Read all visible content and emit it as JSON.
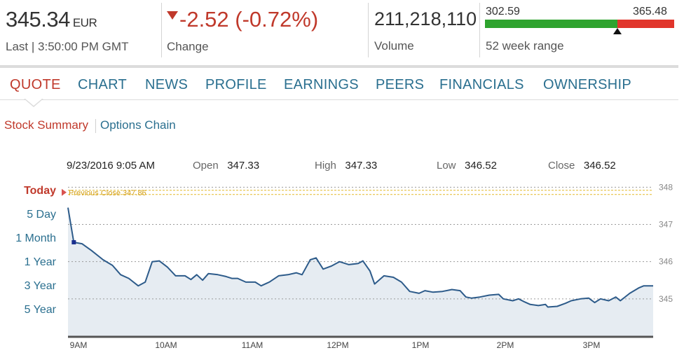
{
  "quote": {
    "price": "345.34",
    "currency": "EUR",
    "last_label": "Last",
    "time": "3:50:00 PM GMT",
    "change": "-2.52 (-0.72%)",
    "change_label": "Change",
    "change_direction_icon": "down-triangle-icon",
    "volume": "211,218,110",
    "volume_label": "Volume",
    "week52_low": "302.59",
    "week52_high": "365.48",
    "week52_label": "52 week range",
    "week52_position_fraction": 0.7,
    "colors": {
      "up": "#2ea32e",
      "down": "#e1352b",
      "accent": "#c0392b",
      "link": "#2a6f8f"
    }
  },
  "nav": {
    "tabs": [
      "QUOTE",
      "CHART",
      "NEWS",
      "PROFILE",
      "EARNINGS",
      "PEERS",
      "FINANCIALS",
      "OWNERSHIP"
    ],
    "active_tab": "QUOTE"
  },
  "subnav": {
    "items": [
      "Stock Summary",
      "Options Chain"
    ],
    "active": "Stock Summary"
  },
  "bar_info": {
    "datetime": "9/23/2016 9:05 AM",
    "open_label": "Open",
    "open": "347.33",
    "high_label": "High",
    "high": "347.33",
    "low_label": "Low",
    "low": "346.52",
    "close_label": "Close",
    "close": "346.52"
  },
  "ranges": {
    "items": [
      "Today",
      "5 Day",
      "1 Month",
      "1 Year",
      "3 Year",
      "5 Year"
    ],
    "active": "Today"
  },
  "chart_data": {
    "type": "area",
    "title": "",
    "xlabel": "",
    "ylabel": "",
    "x_tick_labels": [
      "9AM",
      "10AM",
      "11AM",
      "12PM",
      "1PM",
      "2PM",
      "3PM"
    ],
    "y_tick_labels": [
      "345",
      "346",
      "347",
      "348"
    ],
    "ylim": [
      344,
      348.1
    ],
    "previous_close": 347.86,
    "previous_close_label": "Previous Close 347.86",
    "grid": true,
    "series": [
      {
        "values": [
          {
            "t": "9:00",
            "v": 347.45
          },
          {
            "t": "9:05",
            "v": 346.52
          },
          {
            "t": "9:12",
            "v": 346.48
          },
          {
            "t": "9:20",
            "v": 346.3
          },
          {
            "t": "9:30",
            "v": 346.05
          },
          {
            "t": "9:38",
            "v": 345.9
          },
          {
            "t": "9:45",
            "v": 345.65
          },
          {
            "t": "9:52",
            "v": 345.55
          },
          {
            "t": "10:00",
            "v": 345.35
          },
          {
            "t": "10:06",
            "v": 345.45
          },
          {
            "t": "10:12",
            "v": 346.0
          },
          {
            "t": "10:18",
            "v": 346.02
          },
          {
            "t": "10:25",
            "v": 345.85
          },
          {
            "t": "10:32",
            "v": 345.62
          },
          {
            "t": "10:40",
            "v": 345.62
          },
          {
            "t": "10:45",
            "v": 345.52
          },
          {
            "t": "10:50",
            "v": 345.65
          },
          {
            "t": "10:55",
            "v": 345.5
          },
          {
            "t": "11:00",
            "v": 345.68
          },
          {
            "t": "11:08",
            "v": 345.65
          },
          {
            "t": "11:15",
            "v": 345.6
          },
          {
            "t": "11:20",
            "v": 345.55
          },
          {
            "t": "11:25",
            "v": 345.55
          },
          {
            "t": "11:32",
            "v": 345.45
          },
          {
            "t": "11:40",
            "v": 345.45
          },
          {
            "t": "11:45",
            "v": 345.35
          },
          {
            "t": "11:52",
            "v": 345.45
          },
          {
            "t": "12:00",
            "v": 345.62
          },
          {
            "t": "12:08",
            "v": 345.65
          },
          {
            "t": "12:15",
            "v": 345.7
          },
          {
            "t": "12:20",
            "v": 345.65
          },
          {
            "t": "12:27",
            "v": 346.05
          },
          {
            "t": "12:32",
            "v": 346.1
          },
          {
            "t": "12:38",
            "v": 345.8
          },
          {
            "t": "12:45",
            "v": 345.88
          },
          {
            "t": "12:52",
            "v": 346.0
          },
          {
            "t": "13:00",
            "v": 345.92
          },
          {
            "t": "13:08",
            "v": 345.95
          },
          {
            "t": "13:12",
            "v": 346.02
          },
          {
            "t": "13:18",
            "v": 345.75
          },
          {
            "t": "13:22",
            "v": 345.4
          },
          {
            "t": "13:30",
            "v": 345.62
          },
          {
            "t": "13:38",
            "v": 345.58
          },
          {
            "t": "13:45",
            "v": 345.45
          },
          {
            "t": "13:52",
            "v": 345.2
          },
          {
            "t": "14:00",
            "v": 345.15
          },
          {
            "t": "14:05",
            "v": 345.22
          },
          {
            "t": "14:12",
            "v": 345.18
          },
          {
            "t": "14:20",
            "v": 345.2
          },
          {
            "t": "14:28",
            "v": 345.25
          },
          {
            "t": "14:35",
            "v": 345.22
          },
          {
            "t": "14:40",
            "v": 345.05
          },
          {
            "t": "14:45",
            "v": 345.02
          },
          {
            "t": "14:52",
            "v": 345.05
          },
          {
            "t": "15:00",
            "v": 345.1
          },
          {
            "t": "15:08",
            "v": 345.12
          },
          {
            "t": "15:12",
            "v": 345.0
          },
          {
            "t": "15:20",
            "v": 344.95
          },
          {
            "t": "15:25",
            "v": 345.0
          },
          {
            "t": "15:30",
            "v": 344.92
          },
          {
            "t": "15:35",
            "v": 344.85
          },
          {
            "t": "15:42",
            "v": 344.82
          },
          {
            "t": "15:48",
            "v": 344.85
          },
          {
            "t": "15:50",
            "v": 344.78
          },
          {
            "t": "15:58",
            "v": 344.8
          },
          {
            "t": "16:05",
            "v": 344.88
          },
          {
            "t": "16:10",
            "v": 344.95
          },
          {
            "t": "16:18",
            "v": 345.0
          },
          {
            "t": "16:25",
            "v": 345.02
          },
          {
            "t": "16:30",
            "v": 344.9
          },
          {
            "t": "16:35",
            "v": 345.0
          },
          {
            "t": "16:42",
            "v": 344.95
          },
          {
            "t": "16:48",
            "v": 345.05
          },
          {
            "t": "16:52",
            "v": 344.95
          },
          {
            "t": "17:00",
            "v": 345.15
          },
          {
            "t": "17:08",
            "v": 345.3
          },
          {
            "t": "17:12",
            "v": 345.35
          },
          {
            "t": "17:20",
            "v": 345.35
          }
        ]
      }
    ],
    "selected_point": {
      "t": "9:05",
      "v": 346.52
    }
  }
}
